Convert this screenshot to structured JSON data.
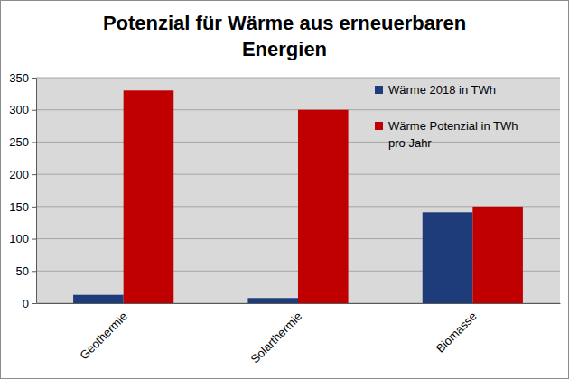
{
  "chart_data": {
    "type": "bar",
    "title": "Potenzial für Wärme aus erneuerbaren Energien",
    "categories": [
      "Geothermie",
      "Solarthermie",
      "Biomasse"
    ],
    "series": [
      {
        "name": "Wärme 2018 in TWh",
        "color": "#1f3c7a",
        "values": [
          13,
          8,
          141
        ]
      },
      {
        "name": "Wärme Potenzial in TWh pro Jahr",
        "color": "#c00000",
        "values": [
          330,
          300,
          150
        ]
      }
    ],
    "ylim": [
      0,
      350
    ],
    "yticks": [
      0,
      50,
      100,
      150,
      200,
      250,
      300,
      350
    ],
    "grid": true,
    "legend": "upper right"
  }
}
